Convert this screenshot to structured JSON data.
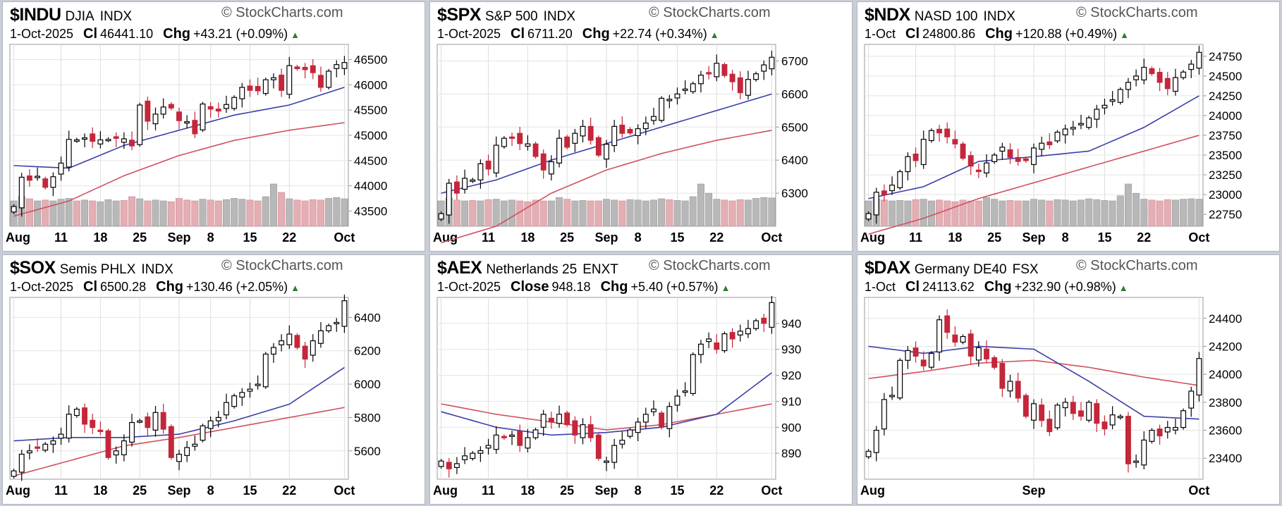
{
  "brand": "© StockCharts.com",
  "chart_data": [
    {
      "type": "candlestick",
      "symbol": "$INDU",
      "name": "DJIA",
      "exchange": "INDX",
      "date": "1-Oct-2025",
      "close_label": "Cl",
      "close": "46441.10",
      "chg_label": "Chg",
      "chg": "+43.21 (+0.09%)",
      "ylim": [
        43200,
        46800
      ],
      "yticks": [
        43500,
        44000,
        44500,
        45000,
        45500,
        46000,
        46500
      ],
      "xlabels": [
        [
          "Aug",
          0
        ],
        [
          "11",
          6
        ],
        [
          "18",
          11
        ],
        [
          "25",
          16
        ],
        [
          "Sep",
          21
        ],
        [
          "8",
          25
        ],
        [
          "15",
          30
        ],
        [
          "22",
          35
        ],
        [
          "Oct",
          42
        ]
      ],
      "closes": [
        43590,
        44170,
        44110,
        44190,
        43970,
        44180,
        44450,
        44920,
        44910,
        44950,
        44880,
        44910,
        44920,
        44940,
        44930,
        44790,
        45600,
        45280,
        45420,
        45560,
        45540,
        45290,
        45270,
        45030,
        45620,
        45520,
        45480,
        45610,
        45750,
        45950,
        45890,
        45880,
        46100,
        46140,
        45890,
        46380,
        46320,
        46300,
        46240,
        45950,
        46270,
        46400,
        46441
      ],
      "ma20": [
        44400,
        44350,
        44800,
        45100,
        45400,
        45600,
        45950
      ],
      "ma50": [
        43400,
        43700,
        44200,
        44600,
        44900,
        45100,
        45250
      ],
      "volume": [
        0.6,
        0.7,
        0.65,
        0.6,
        0.62,
        0.6,
        0.64,
        0.66,
        0.6,
        0.62,
        0.6,
        0.58,
        0.63,
        0.6,
        0.61,
        0.7,
        0.65,
        0.6,
        0.62,
        0.6,
        0.58,
        0.66,
        0.62,
        0.6,
        0.64,
        0.62,
        0.6,
        0.63,
        0.66,
        0.64,
        0.62,
        0.6,
        0.7,
        1.0,
        0.8,
        0.65,
        0.62,
        0.6,
        0.63,
        0.62,
        0.66,
        0.68,
        0.65
      ]
    },
    {
      "type": "candlestick",
      "symbol": "$SPX",
      "name": "S&P 500",
      "exchange": "INDX",
      "date": "1-Oct-2025",
      "close_label": "Cl",
      "close": "6711.20",
      "chg_label": "Chg",
      "chg": "+22.74 (+0.34%)",
      "ylim": [
        6200,
        6750
      ],
      "yticks": [
        6300,
        6400,
        6500,
        6600,
        6700
      ],
      "xlabels": [
        [
          "Aug",
          0
        ],
        [
          "11",
          6
        ],
        [
          "18",
          11
        ],
        [
          "25",
          16
        ],
        [
          "Sep",
          21
        ],
        [
          "8",
          25
        ],
        [
          "15",
          30
        ],
        [
          "22",
          35
        ],
        [
          "Oct",
          42
        ]
      ],
      "closes": [
        6238,
        6330,
        6300,
        6345,
        6340,
        6389,
        6373,
        6445,
        6466,
        6469,
        6450,
        6449,
        6411,
        6370,
        6395,
        6466,
        6439,
        6481,
        6502,
        6460,
        6415,
        6448,
        6502,
        6481,
        6482,
        6495,
        6512,
        6532,
        6587,
        6584,
        6600,
        6615,
        6631,
        6657,
        6664,
        6693,
        6656,
        6637,
        6604,
        6644,
        6661,
        6688,
        6711
      ],
      "ma20": [
        6300,
        6340,
        6400,
        6450,
        6500,
        6550,
        6600
      ],
      "ma50": [
        6150,
        6200,
        6300,
        6370,
        6420,
        6460,
        6490
      ],
      "volume": [
        0.6,
        0.66,
        0.62,
        0.6,
        0.61,
        0.6,
        0.63,
        0.64,
        0.6,
        0.62,
        0.6,
        0.58,
        0.62,
        0.6,
        0.6,
        0.68,
        0.64,
        0.6,
        0.61,
        0.6,
        0.6,
        0.64,
        0.62,
        0.6,
        0.63,
        0.62,
        0.6,
        0.62,
        0.65,
        0.63,
        0.61,
        0.6,
        0.7,
        1.0,
        0.78,
        0.64,
        0.62,
        0.6,
        0.63,
        0.62,
        0.66,
        0.68,
        0.67
      ]
    },
    {
      "type": "candlestick",
      "symbol": "$NDX",
      "name": "NASD 100",
      "exchange": "INDX",
      "date": "1-Oct",
      "close_label": "Cl",
      "close": "24800.86",
      "chg_label": "Chg",
      "chg": "+120.88 (+0.49%)",
      "ylim": [
        22600,
        24900
      ],
      "yticks": [
        22750,
        23000,
        23250,
        23500,
        23750,
        24000,
        24250,
        24500,
        24750
      ],
      "xlabels": [
        [
          "Aug",
          0
        ],
        [
          "11",
          6
        ],
        [
          "18",
          11
        ],
        [
          "25",
          16
        ],
        [
          "Sep",
          21
        ],
        [
          "8",
          25
        ],
        [
          "15",
          30
        ],
        [
          "22",
          35
        ],
        [
          "Oct",
          42
        ]
      ],
      "closes": [
        22760,
        23030,
        23000,
        23120,
        23290,
        23480,
        23430,
        23700,
        23810,
        23780,
        23730,
        23640,
        23460,
        23360,
        23290,
        23400,
        23500,
        23600,
        23470,
        23420,
        23430,
        23590,
        23650,
        23630,
        23790,
        23830,
        23850,
        23900,
        23970,
        24080,
        24130,
        24200,
        24330,
        24420,
        24500,
        24610,
        24530,
        24420,
        24340,
        24480,
        24550,
        24650,
        24800
      ],
      "ma20": [
        22950,
        23100,
        23420,
        23480,
        23550,
        23850,
        24250
      ],
      "ma50": [
        22500,
        22700,
        22950,
        23150,
        23350,
        23550,
        23750
      ],
      "volume": [
        0.6,
        0.65,
        0.62,
        0.6,
        0.61,
        0.6,
        0.63,
        0.64,
        0.6,
        0.62,
        0.6,
        0.58,
        0.62,
        0.6,
        0.6,
        0.68,
        0.64,
        0.6,
        0.61,
        0.6,
        0.6,
        0.64,
        0.62,
        0.6,
        0.63,
        0.62,
        0.6,
        0.62,
        0.65,
        0.63,
        0.61,
        0.6,
        0.72,
        1.0,
        0.78,
        0.64,
        0.62,
        0.6,
        0.63,
        0.62,
        0.64,
        0.65,
        0.64
      ]
    },
    {
      "type": "candlestick",
      "symbol": "$SOX",
      "name": "Semis PHLX",
      "exchange": "INDX",
      "date": "1-Oct-2025",
      "close_label": "Cl",
      "close": "6500.28",
      "chg_label": "Chg",
      "chg": "+130.46 (+2.05%)",
      "ylim": [
        5430,
        6520
      ],
      "yticks": [
        5600,
        5800,
        6000,
        6200,
        6400
      ],
      "xlabels": [
        [
          "Aug",
          0
        ],
        [
          "11",
          6
        ],
        [
          "18",
          11
        ],
        [
          "25",
          16
        ],
        [
          "Sep",
          21
        ],
        [
          "8",
          25
        ],
        [
          "15",
          30
        ],
        [
          "22",
          35
        ],
        [
          "Oct",
          42
        ]
      ],
      "closes": [
        5480,
        5580,
        5600,
        5620,
        5640,
        5660,
        5700,
        5820,
        5850,
        5760,
        5740,
        5720,
        5560,
        5600,
        5660,
        5770,
        5780,
        5740,
        5830,
        5730,
        5560,
        5580,
        5620,
        5640,
        5750,
        5780,
        5800,
        5890,
        5930,
        5950,
        5970,
        6000,
        6180,
        6220,
        6260,
        6300,
        6220,
        6150,
        6260,
        6320,
        6350,
        6370,
        6500
      ],
      "ma20": [
        5660,
        5680,
        5680,
        5700,
        5780,
        5880,
        6100
      ],
      "ma50": [
        5450,
        5540,
        5630,
        5680,
        5740,
        5800,
        5860
      ]
    },
    {
      "type": "candlestick",
      "symbol": "$AEX",
      "name": "Netherlands 25",
      "exchange": "ENXT",
      "date": "1-Oct-2025",
      "close_label": "Close",
      "close": "948.18",
      "chg_label": "Chg",
      "chg": "+5.40 (+0.57%)",
      "ylim": [
        880,
        950
      ],
      "yticks": [
        890,
        900,
        910,
        920,
        930,
        940
      ],
      "xlabels": [
        [
          "Aug",
          0
        ],
        [
          "11",
          6
        ],
        [
          "18",
          11
        ],
        [
          "25",
          16
        ],
        [
          "Sep",
          21
        ],
        [
          "8",
          25
        ],
        [
          "15",
          30
        ],
        [
          "22",
          35
        ],
        [
          "Oct",
          42
        ]
      ],
      "closes": [
        887,
        884,
        886,
        889,
        890,
        891,
        893,
        897,
        896,
        897,
        893,
        896,
        899,
        905,
        902,
        905,
        901,
        897,
        901,
        896,
        888,
        887,
        893,
        895,
        899,
        902,
        905,
        907,
        900,
        908,
        912,
        914,
        928,
        932,
        934,
        930,
        936,
        934,
        937,
        938,
        941,
        940,
        948
      ],
      "ma20": [
        906,
        900,
        897,
        898,
        900,
        905,
        921
      ],
      "ma50": [
        909,
        905,
        902,
        899,
        901,
        905,
        909
      ]
    },
    {
      "type": "candlestick",
      "symbol": "$DAX",
      "name": "Germany DE40",
      "exchange": "FSX",
      "date": "1-Oct",
      "close_label": "Cl",
      "close": "24113.62",
      "chg_label": "Chg",
      "chg": "+232.90 (+0.98%)",
      "ylim": [
        23250,
        24550
      ],
      "yticks": [
        23400,
        23600,
        23800,
        24000,
        24200,
        24400
      ],
      "xlabels": [
        [
          "Aug",
          0
        ],
        [
          "Sep",
          21
        ],
        [
          "Oct",
          42
        ]
      ],
      "closes": [
        23450,
        23600,
        23820,
        23850,
        24100,
        24170,
        24130,
        24060,
        24150,
        24390,
        24300,
        24230,
        24270,
        24130,
        24190,
        24110,
        24050,
        23900,
        23950,
        23830,
        23700,
        23790,
        23670,
        23590,
        23780,
        23800,
        23720,
        23700,
        23800,
        23650,
        23610,
        23710,
        23700,
        23360,
        23380,
        23530,
        23600,
        23560,
        23620,
        23620,
        23740,
        23880,
        24113
      ],
      "ma20": [
        24200,
        24150,
        24200,
        24180,
        23950,
        23700,
        23680
      ],
      "ma50": [
        23970,
        24020,
        24080,
        24100,
        24050,
        23980,
        23920
      ]
    }
  ]
}
